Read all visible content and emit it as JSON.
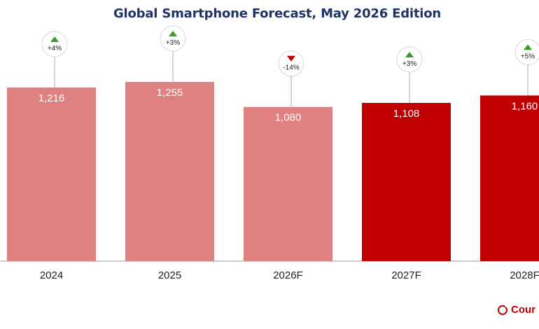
{
  "chart_data": {
    "type": "bar",
    "title": "Global Smartphone Forecast, May 2026 Edition",
    "categories": [
      "2024",
      "2025",
      "2026F",
      "2027F",
      "2028F"
    ],
    "values": [
      1216,
      1255,
      1080,
      1108,
      1160
    ],
    "value_labels": [
      "1,216",
      "1,255",
      "1,080",
      "1,108",
      "1,160"
    ],
    "growth": [
      {
        "label": "+4%",
        "direction": "up"
      },
      {
        "label": "+3%",
        "direction": "up"
      },
      {
        "label": "-14%",
        "direction": "down"
      },
      {
        "label": "+3%",
        "direction": "up"
      },
      {
        "label": "+5%",
        "direction": "up"
      }
    ],
    "ylim": [
      0,
      1520
    ],
    "grid": false,
    "colors": {
      "actual": "#e08080",
      "forecast": "#c00000",
      "up_arrow": "#3a9a2a",
      "down_arrow": "#c00000",
      "title": "#1f3366"
    },
    "forecast_start_index": 3
  },
  "source_logo": {
    "text": "Cour"
  }
}
